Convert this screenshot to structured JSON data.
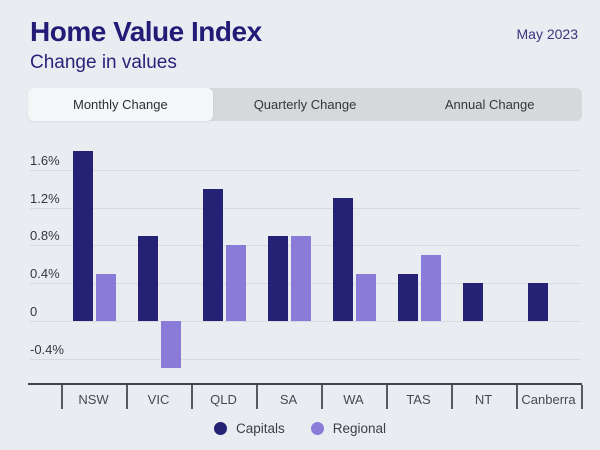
{
  "header": {
    "title": "Home Value Index",
    "subtitle": "Change in values",
    "date": "May 2023"
  },
  "tabs": [
    {
      "label": "Monthly Change",
      "active": true
    },
    {
      "label": "Quarterly Change",
      "active": false
    },
    {
      "label": "Annual Change",
      "active": false
    }
  ],
  "chart_data": {
    "type": "bar",
    "categories": [
      "NSW",
      "VIC",
      "QLD",
      "SA",
      "WA",
      "TAS",
      "NT",
      "Canberra"
    ],
    "series": [
      {
        "name": "Capitals",
        "color": "#252175",
        "values": [
          1.8,
          0.9,
          1.4,
          0.9,
          1.3,
          0.5,
          0.4,
          0.4
        ]
      },
      {
        "name": "Regional",
        "color": "#8b7bd8",
        "values": [
          0.5,
          -0.5,
          0.8,
          0.9,
          0.5,
          0.7,
          null,
          null
        ]
      }
    ],
    "unit": "%",
    "y_ticks": [
      {
        "label": "1.6%",
        "value": 1.6
      },
      {
        "label": "1.2%",
        "value": 1.2
      },
      {
        "label": "0.8%",
        "value": 0.8
      },
      {
        "label": "0.4%",
        "value": 0.4
      },
      {
        "label": "0",
        "value": 0
      },
      {
        "label": "-0.4%",
        "value": -0.4
      }
    ],
    "ylim": [
      -0.66,
      2.0
    ],
    "grid": true,
    "legend_position": "bottom",
    "title": "Home Value Index",
    "subtitle": "Change in values"
  },
  "colors": {
    "background": "#e9edf2",
    "capitals": "#252175",
    "regional": "#8b7bd8",
    "tab_strip": "#d7d8da",
    "tab_active": "#f4f6f8"
  }
}
